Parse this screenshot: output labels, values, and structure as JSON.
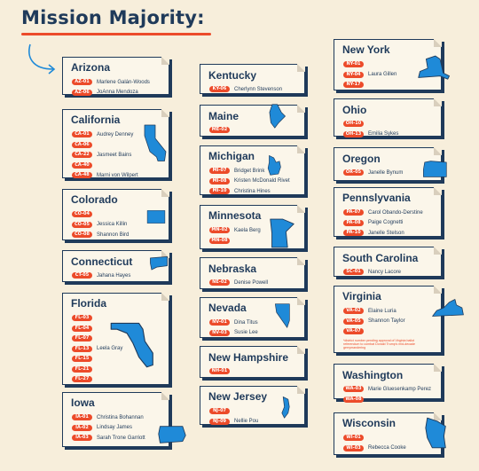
{
  "title": "Mission Majority:",
  "colors": {
    "accent": "#ec4b2a",
    "navy": "#1f3a5a",
    "map": "#1f8ad8",
    "bg": "#f7eedb"
  },
  "states": {
    "arizona": {
      "name": "Arizona",
      "reps": [
        {
          "district": "AZ-01",
          "name": "Marlene Galán-Woods"
        },
        {
          "district": "AZ-06",
          "name": "JoAnna Mendoza"
        }
      ]
    },
    "california": {
      "name": "California",
      "reps": [
        {
          "district": "CA-01",
          "name": "Audrey Denney"
        },
        {
          "district": "CA-06",
          "name": ""
        },
        {
          "district": "CA-22",
          "name": "Jasmeet Bains"
        },
        {
          "district": "CA-40",
          "name": ""
        },
        {
          "district": "CA-48",
          "name": "Marni von Wilpert"
        }
      ]
    },
    "colorado": {
      "name": "Colorado",
      "reps": [
        {
          "district": "CO-04",
          "name": ""
        },
        {
          "district": "CO-05",
          "name": "Jessica Killin"
        },
        {
          "district": "CO-08",
          "name": "Shannon Bird"
        }
      ]
    },
    "connecticut": {
      "name": "Connecticut",
      "reps": [
        {
          "district": "CT-05",
          "name": "Jahana Hayes"
        }
      ]
    },
    "florida": {
      "name": "Florida",
      "reps": [
        {
          "district": "FL-03",
          "name": ""
        },
        {
          "district": "FL-04",
          "name": ""
        },
        {
          "district": "FL-07",
          "name": ""
        },
        {
          "district": "FL-13",
          "name": "Leela Gray"
        },
        {
          "district": "FL-15",
          "name": ""
        },
        {
          "district": "FL-21",
          "name": ""
        },
        {
          "district": "FL-27",
          "name": ""
        }
      ]
    },
    "iowa": {
      "name": "Iowa",
      "reps": [
        {
          "district": "IA-01",
          "name": "Christina Bohannan"
        },
        {
          "district": "IA-02",
          "name": "Lindsay James"
        },
        {
          "district": "IA-03",
          "name": "Sarah Trone Garriott"
        }
      ]
    },
    "kentucky": {
      "name": "Kentucky",
      "reps": [
        {
          "district": "KY-06",
          "name": "Cherlynn Stevenson"
        }
      ]
    },
    "maine": {
      "name": "Maine",
      "reps": [
        {
          "district": "ME-02",
          "name": ""
        }
      ]
    },
    "michigan": {
      "name": "Michigan",
      "reps": [
        {
          "district": "MI-07",
          "name": "Bridget Brink"
        },
        {
          "district": "MI-08",
          "name": "Kristen McDonald Rivet"
        },
        {
          "district": "MI-10",
          "name": "Christina Hines"
        }
      ]
    },
    "minnesota": {
      "name": "Minnesota",
      "reps": [
        {
          "district": "MN-02",
          "name": "Kaela Berg"
        },
        {
          "district": "MN-08",
          "name": ""
        }
      ]
    },
    "nebraska": {
      "name": "Nebraska",
      "reps": [
        {
          "district": "NE-02",
          "name": "Denise Powell"
        }
      ]
    },
    "nevada": {
      "name": "Nevada",
      "reps": [
        {
          "district": "NV-01",
          "name": "Dina Titus"
        },
        {
          "district": "NV-03",
          "name": "Susie Lee"
        }
      ]
    },
    "new_hampshire": {
      "name": "New Hampshire",
      "reps": [
        {
          "district": "NH-01",
          "name": ""
        }
      ]
    },
    "new_jersey": {
      "name": "New Jersey",
      "reps": [
        {
          "district": "NJ-07",
          "name": ""
        },
        {
          "district": "NJ-09",
          "name": "Nellie Pou"
        }
      ]
    },
    "new_york": {
      "name": "New York",
      "reps": [
        {
          "district": "NY-01",
          "name": ""
        },
        {
          "district": "NY-04",
          "name": "Laura Gillen"
        },
        {
          "district": "NY-17",
          "name": ""
        }
      ]
    },
    "ohio": {
      "name": "Ohio",
      "reps": [
        {
          "district": "OH-10",
          "name": ""
        },
        {
          "district": "OH-13",
          "name": "Emilia Sykes"
        }
      ]
    },
    "oregon": {
      "name": "Oregon",
      "reps": [
        {
          "district": "OR-05",
          "name": "Janelle Bynum"
        }
      ]
    },
    "pennsylvania": {
      "name": "Pennslyvania",
      "reps": [
        {
          "district": "PA-07",
          "name": "Carol Obando-Derstine"
        },
        {
          "district": "PA-08",
          "name": "Paige Cognetti"
        },
        {
          "district": "PA-10",
          "name": "Janelle Stelson"
        }
      ]
    },
    "south_carolina": {
      "name": "South Carolina",
      "reps": [
        {
          "district": "SC-01",
          "name": "Nancy Lacore"
        }
      ]
    },
    "virginia": {
      "name": "Virginia",
      "reps": [
        {
          "district": "VA-02",
          "name": "Elaine Luria"
        },
        {
          "district": "VA-05",
          "name": "Shannon Taylor"
        },
        {
          "district": "VA-07",
          "name": ""
        }
      ],
      "note": "*district number pending approval of Virginia ballot referendum to combat Donald Trump's mid-decade gerrymandering"
    },
    "washington": {
      "name": "Washington",
      "reps": [
        {
          "district": "WA-03",
          "name": "Marie Gluesenkamp Perez"
        },
        {
          "district": "WA-08",
          "name": ""
        }
      ]
    },
    "wisconsin": {
      "name": "Wisconsin",
      "reps": [
        {
          "district": "WI-01",
          "name": ""
        },
        {
          "district": "WI-03",
          "name": "Rebecca Cooke"
        }
      ]
    }
  }
}
